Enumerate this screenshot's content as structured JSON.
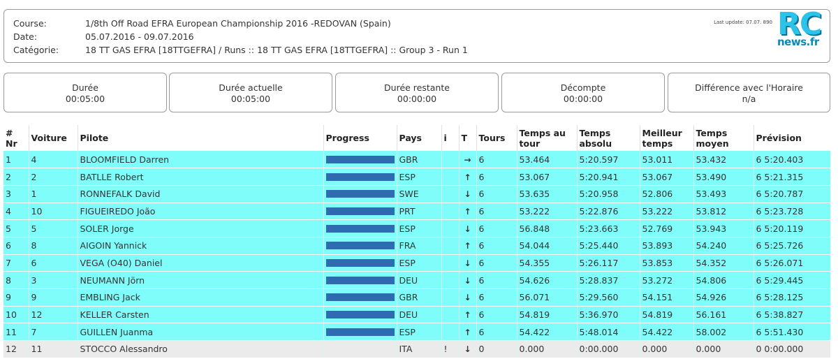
{
  "header": {
    "course_label": "Course:",
    "course_value": "1/8th Off Road EFRA European Championship 2016 -REDOVAN (Spain)",
    "date_label": "Date:",
    "date_value": "05.07.2016 - 09.07.2016",
    "category_label": "Catégorie:",
    "category_value": "18 TT GAS EFRA [18TTGEFRA] / Runs :: 18 TT GAS EFRA [18TTGEFRA] :: Group 3 - Run 1",
    "last_update": "Last update: 07.07.  890"
  },
  "logo": {
    "rc": "RC",
    "news": "news.fr"
  },
  "stats": [
    {
      "title": "Durée",
      "value": "00:05:00"
    },
    {
      "title": "Durée actuelle",
      "value": "00:05:00"
    },
    {
      "title": "Durée restante",
      "value": "00:00:00"
    },
    {
      "title": "Décompte",
      "value": "00:00:00"
    },
    {
      "title": "Différence avec l'Horaire",
      "value": "n/a"
    }
  ],
  "table": {
    "headers": {
      "nr": "# Nr",
      "voiture": "Voiture",
      "pilote": "Pilote",
      "progress": "Progress",
      "pays": "Pays",
      "i": "i",
      "t": "T",
      "tours": "Tours",
      "temps_tour": "Temps au tour",
      "temps_absolu": "Temps absolu",
      "meilleur": "Meilleur temps",
      "moyen": "Temps moyen",
      "prevision": "Prévision"
    },
    "rows": [
      {
        "nr": "1",
        "voiture": "4",
        "pilote": "BLOOMFIELD Darren",
        "progress": 1,
        "pays": "GBR",
        "i": "",
        "trend": "right",
        "tours": "6",
        "tour": "53.464",
        "absolu": "5:20.597",
        "meilleur": "53.011",
        "moyen": "53.432",
        "prevision": "6 5:20.403"
      },
      {
        "nr": "2",
        "voiture": "2",
        "pilote": "BATLLE Robert",
        "progress": 1,
        "pays": "ESP",
        "i": "",
        "trend": "up",
        "tours": "6",
        "tour": "53.067",
        "absolu": "5:20.941",
        "meilleur": "53.067",
        "moyen": "53.490",
        "prevision": "6 5:21.315"
      },
      {
        "nr": "3",
        "voiture": "1",
        "pilote": "RONNEFALK David",
        "progress": 1,
        "pays": "SWE",
        "i": "",
        "trend": "down",
        "tours": "6",
        "tour": "53.635",
        "absolu": "5:20.958",
        "meilleur": "52.806",
        "moyen": "53.493",
        "prevision": "6 5:20.787"
      },
      {
        "nr": "4",
        "voiture": "10",
        "pilote": "FIGUEIREDO João",
        "progress": 1,
        "pays": "PRT",
        "i": "",
        "trend": "up",
        "tours": "6",
        "tour": "53.222",
        "absolu": "5:22.876",
        "meilleur": "53.222",
        "moyen": "53.812",
        "prevision": "6 5:23.728"
      },
      {
        "nr": "5",
        "voiture": "5",
        "pilote": "SOLER Jorge",
        "progress": 1,
        "pays": "ESP",
        "i": "",
        "trend": "down",
        "tours": "6",
        "tour": "56.848",
        "absolu": "5:23.663",
        "meilleur": "52.769",
        "moyen": "53.943",
        "prevision": "6 5:20.119"
      },
      {
        "nr": "6",
        "voiture": "8",
        "pilote": "AIGOIN Yannick",
        "progress": 1,
        "pays": "FRA",
        "i": "",
        "trend": "up",
        "tours": "6",
        "tour": "54.044",
        "absolu": "5:25.440",
        "meilleur": "53.893",
        "moyen": "54.240",
        "prevision": "6 5:25.726"
      },
      {
        "nr": "7",
        "voiture": "6",
        "pilote": "VEGA (O40) Daniel",
        "progress": 1,
        "pays": "ESP",
        "i": "",
        "trend": "down",
        "tours": "6",
        "tour": "54.355",
        "absolu": "5:26.117",
        "meilleur": "53.853",
        "moyen": "54.352",
        "prevision": "6 5:26.071"
      },
      {
        "nr": "8",
        "voiture": "3",
        "pilote": "NEUMANN Jörn",
        "progress": 1,
        "pays": "DEU",
        "i": "",
        "trend": "down",
        "tours": "6",
        "tour": "54.626",
        "absolu": "5:28.837",
        "meilleur": "53.272",
        "moyen": "54.806",
        "prevision": "6 5:29.445"
      },
      {
        "nr": "9",
        "voiture": "9",
        "pilote": "EMBLING Jack",
        "progress": 1,
        "pays": "GBR",
        "i": "",
        "trend": "down",
        "tours": "6",
        "tour": "56.071",
        "absolu": "5:29.560",
        "meilleur": "54.151",
        "moyen": "54.926",
        "prevision": "6 5:28.125"
      },
      {
        "nr": "10",
        "voiture": "12",
        "pilote": "KELLER Carsten",
        "progress": 1,
        "pays": "DEU",
        "i": "",
        "trend": "up",
        "tours": "6",
        "tour": "54.819",
        "absolu": "5:36.970",
        "meilleur": "54.819",
        "moyen": "56.161",
        "prevision": "6 5:38.827"
      },
      {
        "nr": "11",
        "voiture": "7",
        "pilote": "GUILLEN Juanma",
        "progress": 1,
        "pays": "ESP",
        "i": "",
        "trend": "up",
        "tours": "6",
        "tour": "54.422",
        "absolu": "5:48.014",
        "meilleur": "54.422",
        "moyen": "58.002",
        "prevision": "6 5:51.430"
      },
      {
        "nr": "12",
        "voiture": "11",
        "pilote": "STOCCO Alessandro",
        "progress": 0,
        "pays": "ITA",
        "i": "!",
        "trend": "down",
        "tours": "0",
        "tour": "0.000",
        "absolu": "0:00.000",
        "meilleur": "0.000",
        "moyen": "0.000",
        "prevision": "0 0:00.000"
      }
    ]
  },
  "colors": {
    "row_bg": "#7ffdfa",
    "inactive_row_bg": "#ebebeb",
    "progress_bar": "#2e6bb0",
    "logo_cyan": "#2cc3ea"
  }
}
